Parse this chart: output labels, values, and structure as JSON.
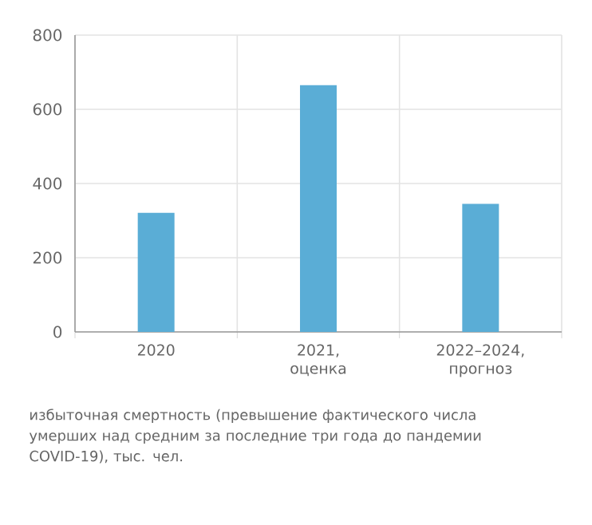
{
  "chart_data": {
    "type": "bar",
    "categories": [
      "2020",
      "2021, оценка",
      "2022–2024, прогноз"
    ],
    "values": [
      321,
      665,
      345
    ],
    "color": "#5aadd6",
    "ylim": [
      0,
      800
    ],
    "yticks": [
      0,
      200,
      400,
      600,
      800
    ],
    "grid": true,
    "annotations": [
      "избыточная смертность (превышение фактического числа умерших над средним за последние три года до пандемии COVID-19), тыс. чел."
    ]
  }
}
